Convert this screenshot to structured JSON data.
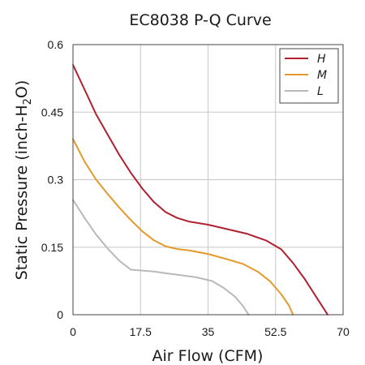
{
  "chart_data": {
    "type": "line",
    "title": "EC8038 P-Q Curve",
    "xlabel": "Air Flow (CFM)",
    "ylabel": "Static Pressure (inch-H2O)",
    "ylabel_parts": {
      "before": "Static Pressure (inch-H",
      "sub": "2",
      "after": "O)"
    },
    "xlim": [
      0,
      70
    ],
    "ylim": [
      0,
      0.6
    ],
    "x_ticks": [
      0,
      17.5,
      35,
      52.5,
      70
    ],
    "x_tick_labels": [
      "0",
      "17.5",
      "35",
      "52.5",
      "70"
    ],
    "y_ticks": [
      0,
      0.15,
      0.3,
      0.45,
      0.6
    ],
    "y_tick_labels": [
      "0",
      "0.15",
      "0.3",
      "0.45",
      "0.6"
    ],
    "grid": true,
    "legend_position": "top-right",
    "series": [
      {
        "name": "H",
        "color": "#b0202e",
        "points": [
          [
            0,
            0.555
          ],
          [
            3,
            0.5
          ],
          [
            6,
            0.445
          ],
          [
            9,
            0.4
          ],
          [
            12,
            0.355
          ],
          [
            15,
            0.315
          ],
          [
            18,
            0.28
          ],
          [
            21,
            0.25
          ],
          [
            24,
            0.228
          ],
          [
            27,
            0.215
          ],
          [
            30,
            0.207
          ],
          [
            35,
            0.2
          ],
          [
            40,
            0.19
          ],
          [
            45,
            0.18
          ],
          [
            50,
            0.165
          ],
          [
            54,
            0.145
          ],
          [
            57,
            0.115
          ],
          [
            60,
            0.08
          ],
          [
            63,
            0.04
          ],
          [
            66,
            0
          ]
        ]
      },
      {
        "name": "M",
        "color": "#e39a2a",
        "points": [
          [
            0,
            0.39
          ],
          [
            3,
            0.34
          ],
          [
            6,
            0.3
          ],
          [
            9,
            0.268
          ],
          [
            12,
            0.238
          ],
          [
            15,
            0.21
          ],
          [
            18,
            0.185
          ],
          [
            21,
            0.165
          ],
          [
            24,
            0.152
          ],
          [
            27,
            0.146
          ],
          [
            30,
            0.143
          ],
          [
            35,
            0.135
          ],
          [
            40,
            0.123
          ],
          [
            44,
            0.113
          ],
          [
            48,
            0.095
          ],
          [
            51,
            0.075
          ],
          [
            54,
            0.045
          ],
          [
            56,
            0.02
          ],
          [
            57,
            0
          ]
        ]
      },
      {
        "name": "L",
        "color": "#b9b9b9",
        "points": [
          [
            0,
            0.255
          ],
          [
            3,
            0.215
          ],
          [
            6,
            0.178
          ],
          [
            9,
            0.147
          ],
          [
            12,
            0.12
          ],
          [
            15,
            0.1
          ],
          [
            18,
            0.098
          ],
          [
            21,
            0.096
          ],
          [
            24,
            0.092
          ],
          [
            28,
            0.088
          ],
          [
            32,
            0.083
          ],
          [
            36,
            0.075
          ],
          [
            39,
            0.06
          ],
          [
            42,
            0.04
          ],
          [
            44,
            0.02
          ],
          [
            45.5,
            0
          ]
        ]
      }
    ]
  }
}
